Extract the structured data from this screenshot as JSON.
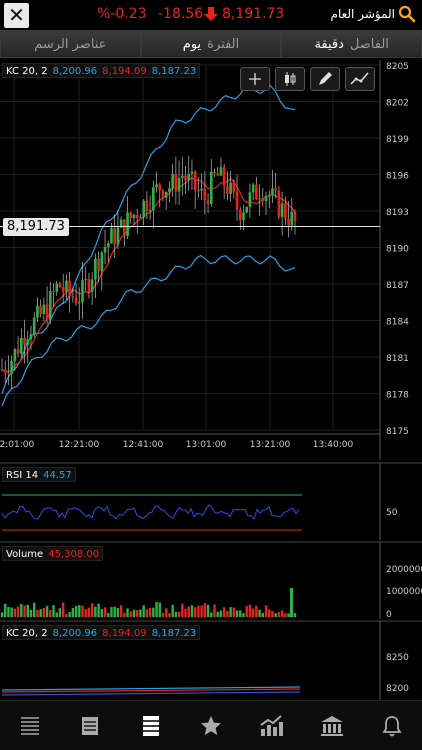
{
  "header": {
    "close_label": "✕",
    "change_pct": "%-0.23",
    "change": "-18.56",
    "price": "8,191.73",
    "index_name": "المؤشر العام"
  },
  "tabs": [
    {
      "key": "الفاصل",
      "value": "دقيقة"
    },
    {
      "key": "الفترة",
      "value": "يوم"
    },
    {
      "key": "عناصر الرسم",
      "value": ""
    }
  ],
  "indicators": {
    "kc": {
      "name": "KC  20, 2",
      "upper": "8,200.96",
      "mid": "8,194.09",
      "lower": "8,187.23"
    },
    "rsi": {
      "name": "RSI  14",
      "value": "44.57"
    },
    "volume": {
      "name": "Volume",
      "value": "45,308.00"
    }
  },
  "last_price_tag": "8,191.73",
  "main_axis": {
    "y_ticks": [
      "8205",
      "8202",
      "8199",
      "8196",
      "8193",
      "8190",
      "8187",
      "8184",
      "8181",
      "8178",
      "8175"
    ],
    "x_ticks": [
      "12:01:00",
      "12:21:00",
      "12:41:00",
      "13:01:00",
      "13:21:00",
      "13:40:00"
    ]
  },
  "rsi_axis": {
    "y_ticks": [
      "50"
    ]
  },
  "volume_axis": {
    "y_ticks": [
      "2000000",
      "1000000",
      "0"
    ]
  },
  "kc_axis": {
    "y_ticks": [
      "8250",
      "8200"
    ]
  },
  "colors": {
    "up": "#2bb34a",
    "down": "#e8231b",
    "kc_band": "#2b9fe0",
    "kc_mid": "#e8231b",
    "background": "#000000"
  },
  "chart_data": {
    "type": "candlestick",
    "y_range": [
      8175,
      8205
    ],
    "x_range_minutes": [
      "12:00",
      "13:46"
    ],
    "price_series_approx": [
      8180,
      8181,
      8183,
      8184,
      8185,
      8187,
      8186,
      8186,
      8188,
      8190,
      8191,
      8192,
      8193,
      8194,
      8195,
      8195,
      8196,
      8195,
      8194,
      8196,
      8195,
      8193,
      8194,
      8195,
      8194,
      8193,
      8192
    ],
    "kc_upper_approx": [
      8178,
      8182,
      8184,
      8187,
      8191,
      8194,
      8197,
      8200,
      8201,
      8202,
      8203,
      8203,
      8201
    ],
    "kc_lower_approx": [
      8177,
      8180,
      8182,
      8183,
      8184,
      8186,
      8187,
      8188,
      8189,
      8189,
      8189,
      8189,
      8188
    ],
    "last_price": 8191.73
  },
  "nav": [
    {
      "name": "list-icon"
    },
    {
      "name": "document-icon"
    },
    {
      "name": "watchlist-icon"
    },
    {
      "name": "star-icon"
    },
    {
      "name": "chart-icon"
    },
    {
      "name": "bank-icon"
    },
    {
      "name": "bell-icon"
    }
  ]
}
